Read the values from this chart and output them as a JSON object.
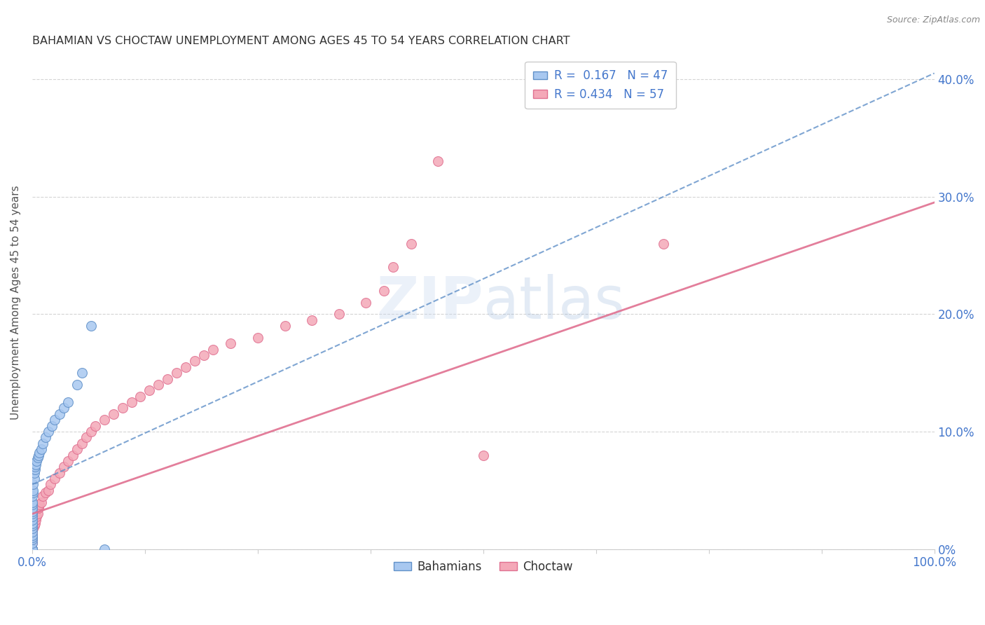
{
  "title": "BAHAMIAN VS CHOCTAW UNEMPLOYMENT AMONG AGES 45 TO 54 YEARS CORRELATION CHART",
  "source": "Source: ZipAtlas.com",
  "ylabel": "Unemployment Among Ages 45 to 54 years",
  "xlim": [
    0.0,
    1.0
  ],
  "ylim": [
    0.0,
    0.42
  ],
  "yticks": [
    0.0,
    0.1,
    0.2,
    0.3,
    0.4
  ],
  "ytick_labels": [
    "0%",
    "10.0%",
    "20.0%",
    "30.0%",
    "40.0%"
  ],
  "bahamians_color": "#a8c8f0",
  "choctaw_color": "#f4a8b8",
  "bahamians_edge": "#6090c8",
  "choctaw_edge": "#e07090",
  "R_bahamians": 0.167,
  "N_bahamians": 47,
  "R_choctaw": 0.434,
  "N_choctaw": 57,
  "legend_label_bahamians": "Bahamians",
  "legend_label_choctaw": "Choctaw",
  "trend_bah_color": "#6090c8",
  "trend_cho_color": "#e07090",
  "watermark_color": "#c8d8f0",
  "background_color": "#ffffff",
  "grid_color": "#d0d0d0",
  "title_color": "#333333",
  "axis_label_color": "#555555",
  "tick_label_color_x": "#4477cc",
  "right_ytick_color": "#4477cc",
  "marker_size": 100,
  "bahamians_x": [
    0.0,
    0.0,
    0.0,
    0.0,
    0.0,
    0.0,
    0.0,
    0.0,
    0.0,
    0.0,
    0.0,
    0.0,
    0.0,
    0.0,
    0.0,
    0.0,
    0.0,
    0.0,
    0.0,
    0.0,
    0.0,
    0.0,
    0.001,
    0.001,
    0.001,
    0.002,
    0.002,
    0.003,
    0.003,
    0.004,
    0.005,
    0.006,
    0.007,
    0.008,
    0.01,
    0.012,
    0.015,
    0.018,
    0.022,
    0.025,
    0.03,
    0.035,
    0.04,
    0.05,
    0.055,
    0.065,
    0.08
  ],
  "bahamians_y": [
    0.0,
    0.0,
    0.0,
    0.0,
    0.0,
    0.0,
    0.005,
    0.008,
    0.01,
    0.012,
    0.015,
    0.018,
    0.02,
    0.022,
    0.025,
    0.028,
    0.03,
    0.032,
    0.035,
    0.038,
    0.04,
    0.045,
    0.048,
    0.05,
    0.055,
    0.06,
    0.065,
    0.068,
    0.07,
    0.072,
    0.075,
    0.078,
    0.08,
    0.082,
    0.085,
    0.09,
    0.095,
    0.1,
    0.105,
    0.11,
    0.115,
    0.12,
    0.125,
    0.14,
    0.15,
    0.19,
    0.0
  ],
  "choctaw_x": [
    0.0,
    0.0,
    0.0,
    0.0,
    0.0,
    0.0,
    0.0,
    0.0,
    0.0,
    0.001,
    0.002,
    0.003,
    0.004,
    0.005,
    0.006,
    0.007,
    0.008,
    0.01,
    0.012,
    0.015,
    0.018,
    0.02,
    0.025,
    0.03,
    0.035,
    0.04,
    0.045,
    0.05,
    0.055,
    0.06,
    0.065,
    0.07,
    0.08,
    0.09,
    0.1,
    0.11,
    0.12,
    0.13,
    0.14,
    0.15,
    0.16,
    0.17,
    0.18,
    0.19,
    0.2,
    0.22,
    0.25,
    0.28,
    0.31,
    0.34,
    0.37,
    0.39,
    0.4,
    0.42,
    0.45,
    0.5,
    0.7
  ],
  "choctaw_y": [
    0.0,
    0.0,
    0.0,
    0.0,
    0.005,
    0.008,
    0.01,
    0.012,
    0.015,
    0.018,
    0.02,
    0.022,
    0.025,
    0.028,
    0.03,
    0.035,
    0.038,
    0.04,
    0.045,
    0.048,
    0.05,
    0.055,
    0.06,
    0.065,
    0.07,
    0.075,
    0.08,
    0.085,
    0.09,
    0.095,
    0.1,
    0.105,
    0.11,
    0.115,
    0.12,
    0.125,
    0.13,
    0.135,
    0.14,
    0.145,
    0.15,
    0.155,
    0.16,
    0.165,
    0.17,
    0.175,
    0.18,
    0.19,
    0.195,
    0.2,
    0.21,
    0.22,
    0.24,
    0.26,
    0.33,
    0.08,
    0.26
  ],
  "trend_bah_x0": 0.0,
  "trend_bah_y0": 0.055,
  "trend_bah_x1": 1.0,
  "trend_bah_y1": 0.405,
  "trend_cho_x0": 0.0,
  "trend_cho_y0": 0.03,
  "trend_cho_x1": 1.0,
  "trend_cho_y1": 0.295
}
